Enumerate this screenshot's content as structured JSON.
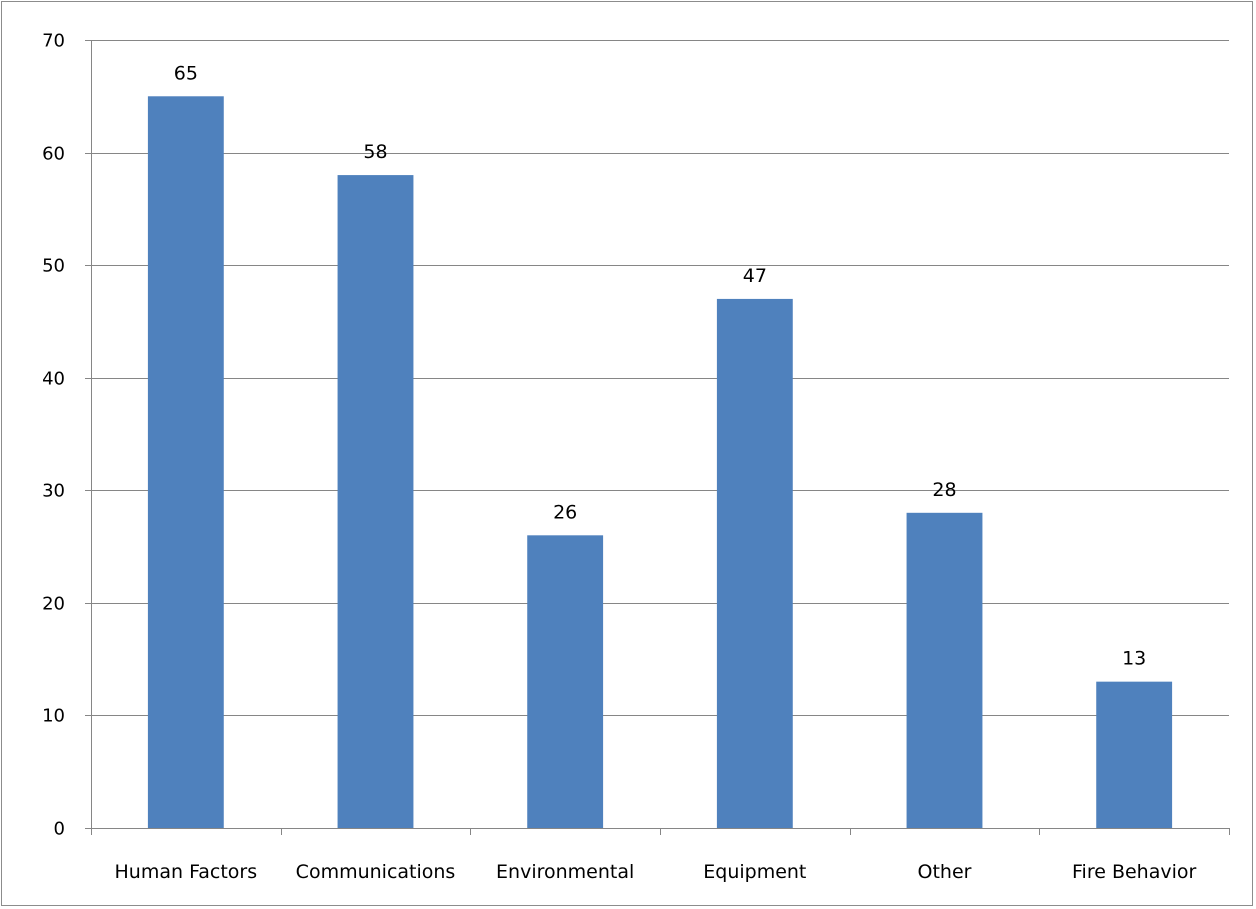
{
  "chart_data": {
    "type": "bar",
    "title": "",
    "xlabel": "",
    "ylabel": "",
    "categories": [
      "Human Factors",
      "Communications",
      "Environmental",
      "Equipment",
      "Other",
      "Fire Behavior"
    ],
    "values": [
      65,
      58,
      26,
      47,
      28,
      13
    ],
    "data_labels": [
      "65",
      "58",
      "26",
      "47",
      "28",
      "13"
    ],
    "ylim": [
      0,
      70
    ],
    "y_ticks": [
      0,
      10,
      20,
      30,
      40,
      50,
      60,
      70
    ],
    "y_tick_labels": [
      "0",
      "10",
      "20",
      "30",
      "40",
      "50",
      "60",
      "70"
    ],
    "grid": true,
    "legend": "none",
    "bar_color": "#4F81BD",
    "gridline_color": "#868686"
  }
}
